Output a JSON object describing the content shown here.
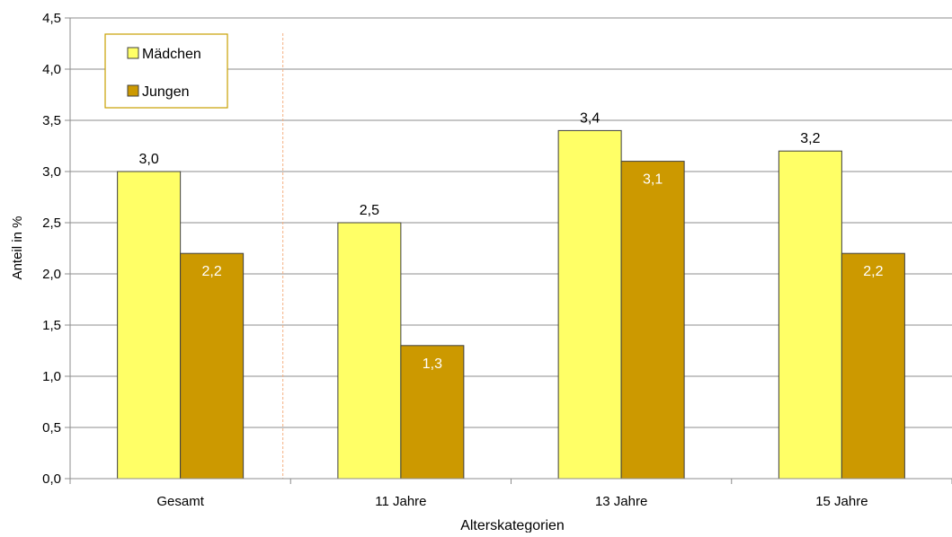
{
  "chart_data": {
    "type": "bar",
    "title": "",
    "xlabel": "Alterskategorien",
    "ylabel": "Anteil in %",
    "ylim": [
      0,
      4.5
    ],
    "yticks": [
      "0,0",
      "0,5",
      "1,0",
      "1,5",
      "2,0",
      "2,5",
      "3,0",
      "3,5",
      "4,0",
      "4,5"
    ],
    "grid": true,
    "legend_position": "top-left",
    "categories": [
      "Gesamt",
      "11 Jahre",
      "13 Jahre",
      "15 Jahre"
    ],
    "series": [
      {
        "name": "Mädchen",
        "color": "#ffff66",
        "values": [
          3.0,
          2.5,
          3.4,
          3.2
        ],
        "labels": [
          "3,0",
          "2,5",
          "3,4",
          "3,2"
        ],
        "label_color": "#000000"
      },
      {
        "name": "Jungen",
        "color": "#cc9900",
        "values": [
          2.2,
          1.3,
          3.1,
          2.2
        ],
        "labels": [
          "2,2",
          "1,3",
          "3,1",
          "2,2"
        ],
        "label_color": "#ffffff"
      }
    ],
    "separator_color": "#f4b183"
  }
}
